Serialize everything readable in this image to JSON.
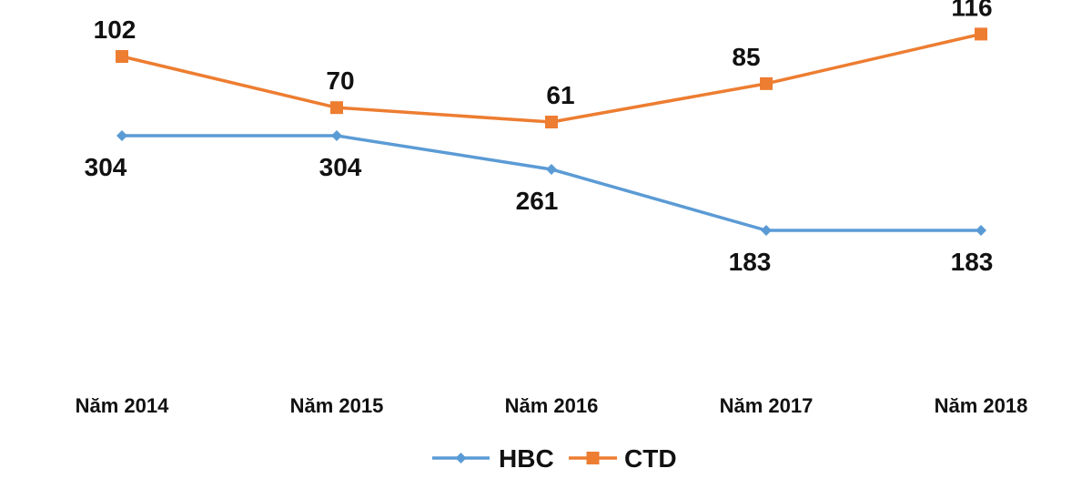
{
  "chart_data": {
    "type": "line",
    "categories": [
      "Năm 2014",
      "Năm 2015",
      "Năm 2016",
      "Năm 2017",
      "Năm 2018"
    ],
    "series": [
      {
        "name": "HBC",
        "values": [
          304,
          304,
          261,
          183,
          183
        ],
        "color": "#5B9BD5",
        "marker": "diamond"
      },
      {
        "name": "CTD",
        "values": [
          102,
          70,
          61,
          85,
          116
        ],
        "color": "#ED7D31",
        "marker": "square"
      }
    ],
    "title": "",
    "xlabel": "",
    "ylabel": "",
    "grid": false,
    "legend": "bottom-center",
    "data_labels": true
  }
}
